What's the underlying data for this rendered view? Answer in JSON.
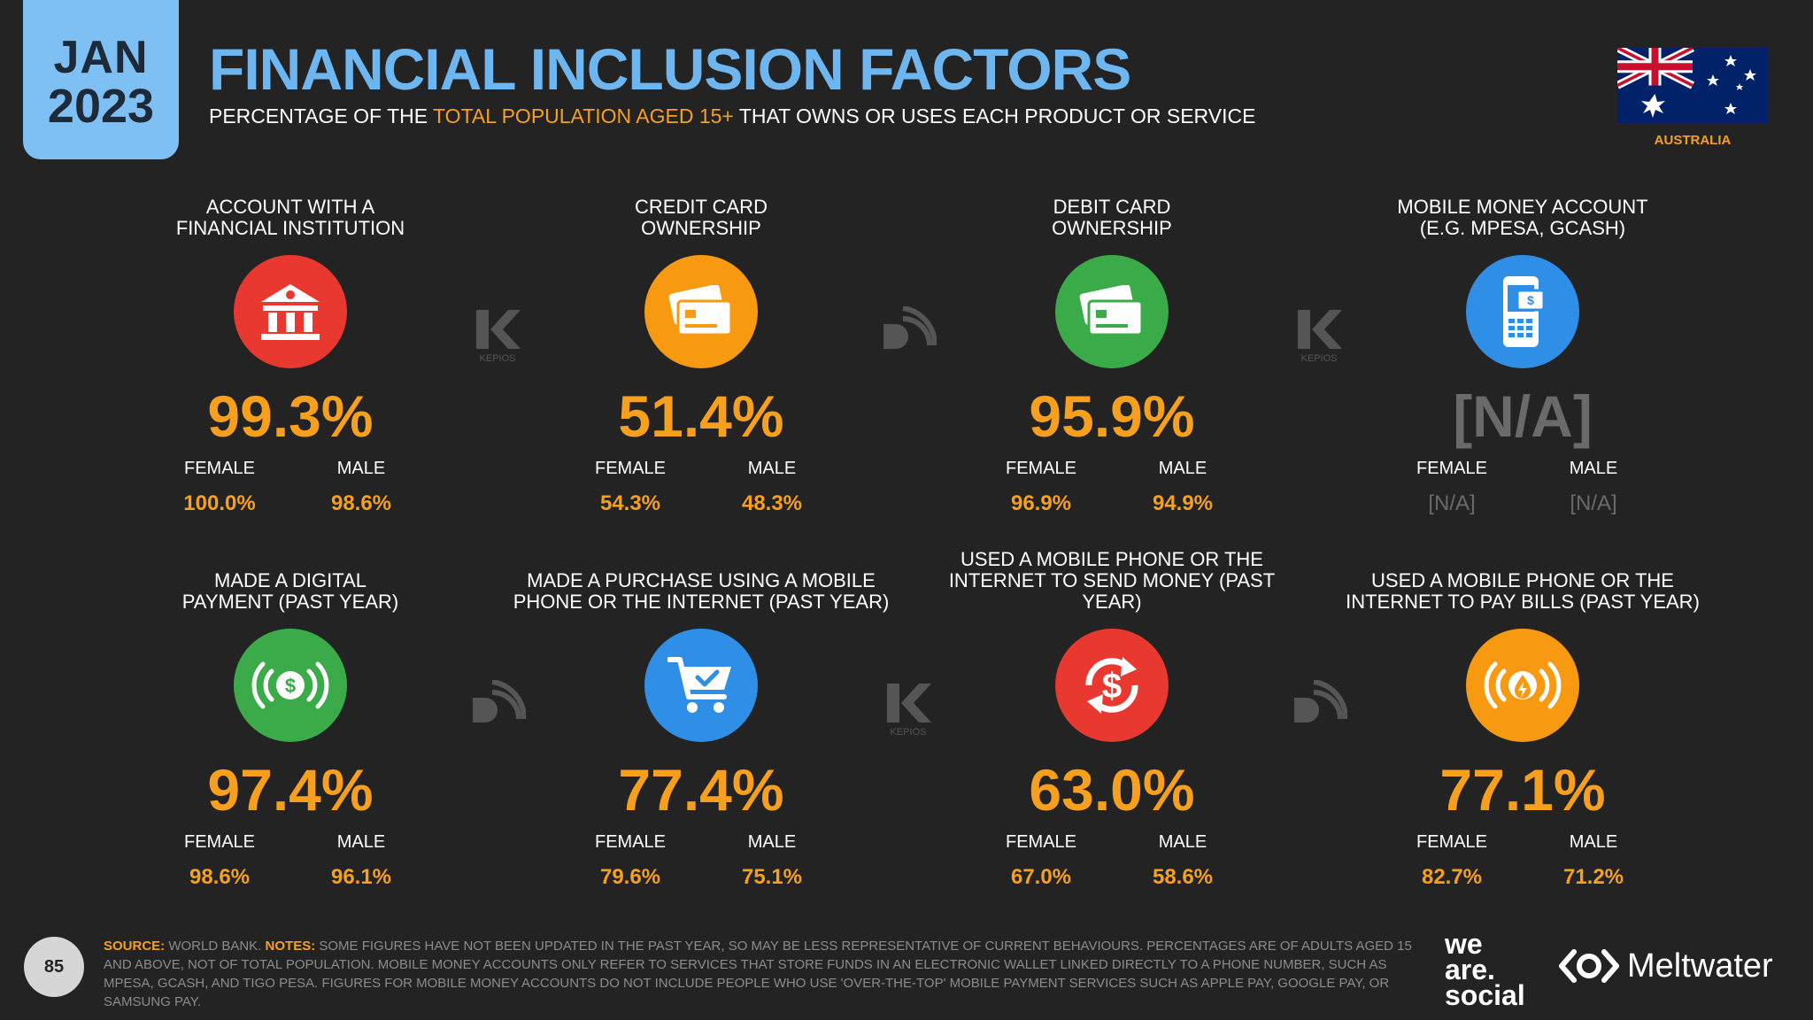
{
  "badge": {
    "month": "JAN",
    "year": "2023"
  },
  "header": {
    "title": "FINANCIAL INCLUSION FACTORS",
    "subtitle_pre": "PERCENTAGE OF THE ",
    "subtitle_highlight": "TOTAL POPULATION AGED 15+",
    "subtitle_post": " THAT OWNS OR USES EACH PRODUCT OR SERVICE"
  },
  "country": {
    "label": "AUSTRALIA"
  },
  "cards": [
    {
      "label1": "ACCOUNT WITH A",
      "label2": "FINANCIAL INSTITUTION",
      "icon": "bank-icon",
      "color": "#e8382f",
      "value": "99.3%",
      "female_label": "FEMALE",
      "male_label": "MALE",
      "female": "100.0%",
      "male": "98.6%"
    },
    {
      "label1": "CREDIT CARD",
      "label2": "OWNERSHIP",
      "icon": "credit-card-icon",
      "color": "#f79a12",
      "value": "51.4%",
      "female_label": "FEMALE",
      "male_label": "MALE",
      "female": "54.3%",
      "male": "48.3%"
    },
    {
      "label1": "DEBIT CARD",
      "label2": "OWNERSHIP",
      "icon": "debit-card-icon",
      "color": "#3bab4a",
      "value": "95.9%",
      "female_label": "FEMALE",
      "male_label": "MALE",
      "female": "96.9%",
      "male": "94.9%"
    },
    {
      "label1": "MOBILE MONEY ACCOUNT",
      "label2": "(E.G. MPESA, GCASH)",
      "icon": "mobile-money-icon",
      "color": "#2f8fe6",
      "value": "[N/A]",
      "female_label": "FEMALE",
      "male_label": "MALE",
      "female": "[N/A]",
      "male": "[N/A]"
    },
    {
      "label1": "MADE A DIGITAL",
      "label2": "PAYMENT (PAST YEAR)",
      "icon": "digital-payment-icon",
      "color": "#3bab4a",
      "value": "97.4%",
      "female_label": "FEMALE",
      "male_label": "MALE",
      "female": "98.6%",
      "male": "96.1%"
    },
    {
      "label1": "MADE A PURCHASE USING A MOBILE",
      "label2": "PHONE OR THE INTERNET (PAST YEAR)",
      "icon": "shopping-cart-icon",
      "color": "#2f8fe6",
      "value": "77.4%",
      "female_label": "FEMALE",
      "male_label": "MALE",
      "female": "79.6%",
      "male": "75.1%"
    },
    {
      "label1": "USED A MOBILE PHONE OR THE",
      "label2": "INTERNET TO SEND MONEY (PAST YEAR)",
      "icon": "send-money-icon",
      "color": "#e8382f",
      "value": "63.0%",
      "female_label": "FEMALE",
      "male_label": "MALE",
      "female": "67.0%",
      "male": "58.6%"
    },
    {
      "label1": "USED A MOBILE PHONE OR THE",
      "label2": "INTERNET TO PAY BILLS (PAST YEAR)",
      "icon": "pay-bills-icon",
      "color": "#f79a12",
      "value": "77.1%",
      "female_label": "FEMALE",
      "male_label": "MALE",
      "female": "82.7%",
      "male": "71.2%"
    }
  ],
  "watermarks": {
    "kepios_text": "KEPIOS"
  },
  "footer": {
    "source_label": "SOURCE:",
    "source_text": " WORLD BANK. ",
    "notes_label": "NOTES:",
    "notes_text": " SOME FIGURES HAVE NOT BEEN UPDATED IN THE PAST YEAR, SO MAY BE LESS REPRESENTATIVE OF CURRENT BEHAVIOURS. PERCENTAGES ARE OF ADULTS AGED 15 AND ABOVE, NOT OF TOTAL POPULATION. MOBILE MONEY ACCOUNTS ONLY REFER TO SERVICES THAT STORE FUNDS IN AN ELECTRONIC WALLET LINKED DIRECTLY TO A PHONE NUMBER, SUCH AS MPESA, GCASH, AND TIGO PESA. FIGURES FOR MOBILE MONEY ACCOUNTS DO NOT INCLUDE PEOPLE WHO USE 'OVER-THE-TOP' MOBILE PAYMENT SERVICES SUCH AS APPLE PAY, GOOGLE PAY, OR SAMSUNG PAY.",
    "page_number": "85"
  },
  "brands": {
    "was_line1": "we",
    "was_line2": "are.",
    "was_line3": "social",
    "meltwater": "Meltwater"
  }
}
